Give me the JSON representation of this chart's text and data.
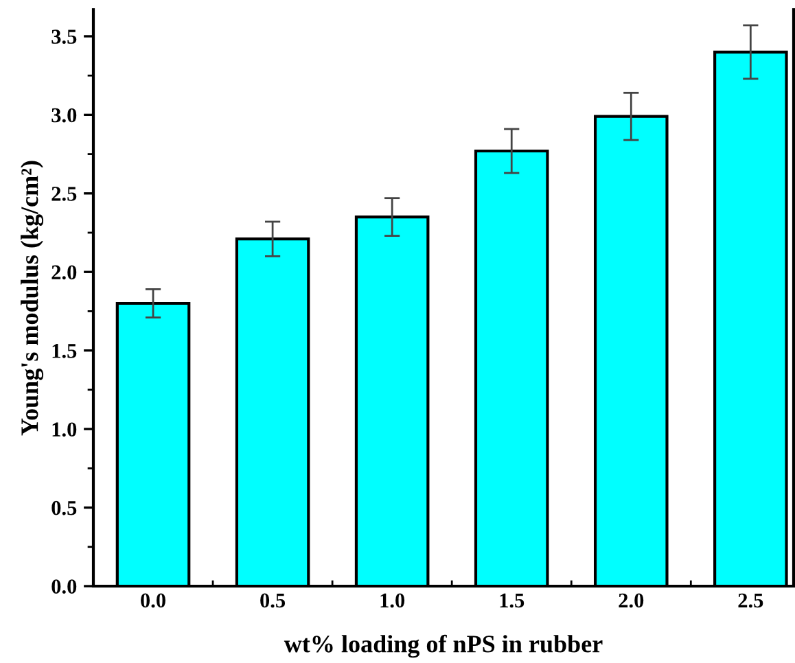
{
  "chart_data": {
    "type": "bar",
    "xlabel": "wt% loading of nPS in rubber",
    "ylabel": "Young's modulus (kg/cm²)",
    "x": [
      0.0,
      0.5,
      1.0,
      1.5,
      2.0,
      2.5
    ],
    "values": [
      1.8,
      2.21,
      2.35,
      2.77,
      2.99,
      3.4
    ],
    "errors": [
      0.09,
      0.11,
      0.12,
      0.14,
      0.15,
      0.17
    ],
    "color": "#00ffff",
    "xlim": [
      -0.25,
      2.68
    ],
    "xticks": [
      {
        "value": 0,
        "label": "0.0"
      },
      {
        "value": 0.5,
        "label": "0.5"
      },
      {
        "value": 1,
        "label": "1.0"
      },
      {
        "value": 1.5,
        "label": "1.5"
      },
      {
        "value": 2,
        "label": "2.0"
      },
      {
        "value": 2.5,
        "label": "2.5"
      }
    ],
    "ylim": [
      0,
      3.67
    ],
    "yticks": [
      {
        "value": 0,
        "label": "0.0"
      },
      {
        "value": 0.5,
        "label": "0.5"
      },
      {
        "value": 1,
        "label": "1.0"
      },
      {
        "value": 1.5,
        "label": "1.5"
      },
      {
        "value": 2,
        "label": "2.0"
      },
      {
        "value": 2.5,
        "label": "2.5"
      },
      {
        "value": 3,
        "label": "3.0"
      },
      {
        "value": 3.5,
        "label": "3.5"
      }
    ],
    "grid": false,
    "legend": false
  }
}
